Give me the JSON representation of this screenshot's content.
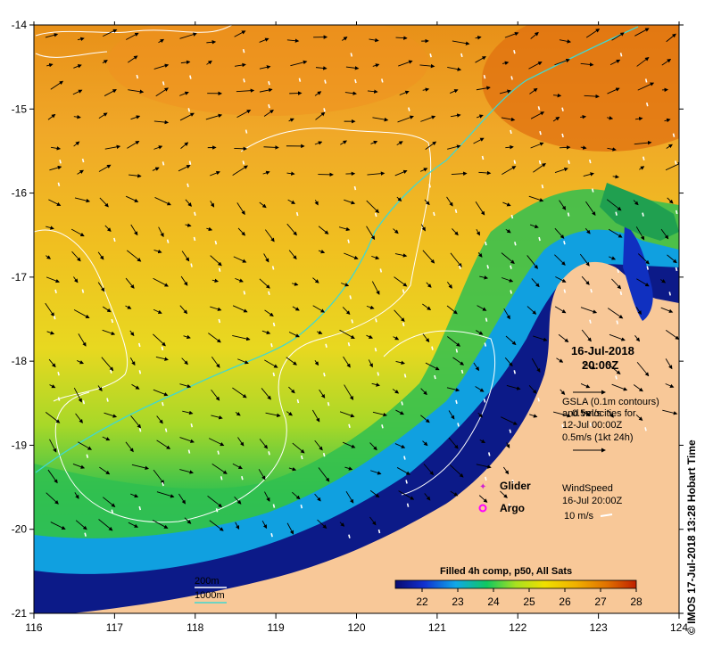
{
  "map": {
    "timestamp_date": "16-Jul-2018",
    "timestamp_time": "20:00Z",
    "credit": "© IMOS 17-Jul-2018 13:28 Hobart Time",
    "x_ticks": [
      "116",
      "117",
      "118",
      "119",
      "120",
      "121",
      "122",
      "123",
      "124"
    ],
    "y_ticks": [
      "-14",
      "-15",
      "-16",
      "-17",
      "-18",
      "-19",
      "-20",
      "-21"
    ],
    "lon_range": [
      116,
      124
    ],
    "lat_range": [
      -21,
      -14
    ]
  },
  "legend_gsla": {
    "line1": "GSLA (0.1m contours)",
    "line2": "and velocities for",
    "line3": "12-Jul 00:00Z",
    "line4": "0.5m/s (1kt 24h)",
    "overlay": "0.5m/s"
  },
  "legend_symbols": {
    "glider": "Glider",
    "argo": "Argo",
    "glider_color": "#d020d0",
    "argo_color": "#ff00ff"
  },
  "legend_wind": {
    "line1": "WindSpeed",
    "line2": "16-Jul 20:00Z",
    "line3": "10 m/s"
  },
  "legend_depth": {
    "line1": "200m",
    "line2": "1000m",
    "color_200": "#ffffff",
    "color_1000": "#40d8d0"
  },
  "colorbar": {
    "title": "Filled 4h comp, p50, All Sats",
    "ticks": [
      "22",
      "23",
      "24",
      "25",
      "26",
      "27",
      "28"
    ],
    "stops": [
      "#0a0a70",
      "#1030d0",
      "#10a8e8",
      "#10c860",
      "#a8e020",
      "#f0e000",
      "#f0b000",
      "#e07000",
      "#c02000"
    ]
  },
  "colors": {
    "land": "#f8c898",
    "cyan_line": "#40d8d0",
    "sst_warm": "#f0a020",
    "sst_mid": "#e8d820",
    "sst_cool": "#20b848",
    "sst_coastal": "#102080"
  }
}
